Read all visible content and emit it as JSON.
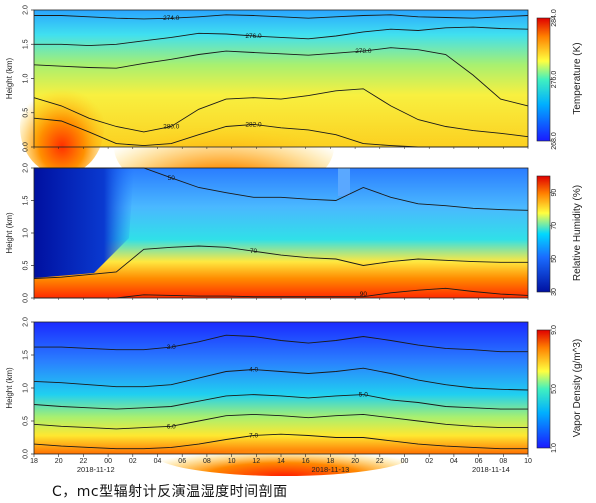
{
  "caption": "C，mc型辐射计反演温湿度时间剖面",
  "chart_data": [
    {
      "type": "heatmap",
      "title": "",
      "ylabel": "Height (km)",
      "xlabel": "",
      "ylim": [
        0,
        2.0
      ],
      "y_ticks": [
        "0.0",
        "0.5",
        "1.0",
        "1.5",
        "2.0"
      ],
      "colorbar": {
        "label": "Temperature (K)",
        "range": [
          268,
          284
        ],
        "ticks": [
          "284.0",
          "276.0",
          "268.0"
        ],
        "colors": [
          "#1a1aff",
          "#00c8ff",
          "#ffff40",
          "#ff8000",
          "#e00000"
        ]
      },
      "contours": [
        {
          "label": "274.0",
          "y": [
            1.92,
            1.92,
            1.9,
            1.88,
            1.87,
            1.88,
            1.9,
            1.93,
            1.92,
            1.9,
            1.88,
            1.9,
            1.92,
            1.93,
            1.9,
            1.89,
            1.88,
            1.9,
            1.92
          ]
        },
        {
          "label": "276.0",
          "y": [
            1.5,
            1.5,
            1.48,
            1.5,
            1.55,
            1.6,
            1.66,
            1.65,
            1.62,
            1.6,
            1.58,
            1.62,
            1.68,
            1.72,
            1.7,
            1.74,
            1.75,
            1.73,
            1.72
          ]
        },
        {
          "label": "278.0",
          "y": [
            1.2,
            1.18,
            1.16,
            1.15,
            1.22,
            1.28,
            1.35,
            1.4,
            1.38,
            1.36,
            1.34,
            1.37,
            1.4,
            1.45,
            1.42,
            1.35,
            1.05,
            0.7,
            0.6
          ]
        },
        {
          "label": "280.0",
          "y": [
            0.72,
            0.6,
            0.42,
            0.3,
            0.22,
            0.3,
            0.55,
            0.7,
            0.72,
            0.7,
            0.75,
            0.82,
            0.85,
            0.6,
            0.4,
            0.3,
            0.24,
            0.2,
            0.15
          ]
        },
        {
          "label": "282.0",
          "y": [
            0.42,
            0.38,
            0.22,
            0.05,
            0.02,
            0.05,
            0.18,
            0.3,
            0.33,
            0.28,
            0.25,
            0.18,
            0.05,
            0.02,
            0.0,
            0.0,
            0.0,
            0.0,
            0.0
          ]
        }
      ]
    },
    {
      "type": "heatmap",
      "title": "",
      "ylabel": "Height (km)",
      "xlabel": "",
      "ylim": [
        0,
        2.0
      ],
      "y_ticks": [
        "0.0",
        "0.5",
        "1.0",
        "1.5",
        "2.0"
      ],
      "colorbar": {
        "label": "Relative Humidity (%)",
        "range": [
          30,
          100
        ],
        "ticks": [
          "90",
          "70",
          "50",
          "30"
        ],
        "colors": [
          "#0010a0",
          "#1a6cff",
          "#00d8ff",
          "#ffff40",
          "#ff8000",
          "#e00000"
        ]
      },
      "contours": [
        {
          "label": "50",
          "y": [
            2.0,
            2.0,
            2.0,
            2.0,
            2.0,
            1.85,
            1.7,
            1.62,
            1.55,
            1.55,
            1.52,
            1.5,
            1.7,
            1.55,
            1.45,
            1.42,
            1.38,
            1.36,
            1.35
          ]
        },
        {
          "label": "70",
          "y": [
            0.3,
            0.32,
            0.36,
            0.4,
            0.75,
            0.78,
            0.8,
            0.78,
            0.72,
            0.66,
            0.62,
            0.6,
            0.5,
            0.56,
            0.6,
            0.58,
            0.56,
            0.55,
            0.55
          ]
        },
        {
          "label": "90",
          "y": [
            0.0,
            0.0,
            0.0,
            0.0,
            0.05,
            0.04,
            0.03,
            0.03,
            0.02,
            0.02,
            0.02,
            0.02,
            0.02,
            0.08,
            0.12,
            0.15,
            0.1,
            0.06,
            0.04
          ]
        }
      ]
    },
    {
      "type": "heatmap",
      "title": "",
      "ylabel": "Height (km)",
      "xlabel": "",
      "ylim": [
        0,
        2.0
      ],
      "y_ticks": [
        "0.0",
        "0.5",
        "1.0",
        "1.5",
        "2.0"
      ],
      "x_ticks": [
        "18",
        "20",
        "22",
        "00",
        "02",
        "04",
        "06",
        "08",
        "10",
        "12",
        "14",
        "16",
        "18",
        "20",
        "22",
        "00",
        "02",
        "04",
        "06",
        "08",
        "10"
      ],
      "date_labels": [
        "2018-11-12",
        "2018-11-13",
        "2018-11-14"
      ],
      "colorbar": {
        "label": "Vapor Density (g/m^3)",
        "range": [
          1.0,
          9.0
        ],
        "ticks": [
          "9.0",
          "5.0",
          "1.0"
        ],
        "colors": [
          "#1a1aff",
          "#00c8ff",
          "#ffff40",
          "#ff8000",
          "#e00000"
        ]
      },
      "contours": [
        {
          "label": "3.0",
          "y": [
            1.62,
            1.62,
            1.6,
            1.58,
            1.58,
            1.62,
            1.7,
            1.8,
            1.78,
            1.72,
            1.68,
            1.72,
            1.78,
            1.72,
            1.65,
            1.6,
            1.58,
            1.55,
            1.55
          ]
        },
        {
          "label": "4.0",
          "y": [
            1.1,
            1.08,
            1.05,
            1.02,
            1.02,
            1.05,
            1.15,
            1.25,
            1.28,
            1.25,
            1.22,
            1.25,
            1.3,
            1.22,
            1.12,
            1.05,
            1.0,
            0.98,
            0.97
          ]
        },
        {
          "label": "5.0",
          "y": [
            0.75,
            0.72,
            0.7,
            0.68,
            0.7,
            0.72,
            0.8,
            0.88,
            0.9,
            0.88,
            0.85,
            0.88,
            0.9,
            0.82,
            0.78,
            0.72,
            0.7,
            0.68,
            0.68
          ]
        },
        {
          "label": "6.0",
          "y": [
            0.45,
            0.42,
            0.4,
            0.38,
            0.4,
            0.42,
            0.5,
            0.58,
            0.6,
            0.58,
            0.55,
            0.58,
            0.6,
            0.55,
            0.5,
            0.45,
            0.42,
            0.4,
            0.4
          ]
        },
        {
          "label": "7.0",
          "y": [
            0.15,
            0.12,
            0.1,
            0.08,
            0.08,
            0.1,
            0.15,
            0.22,
            0.28,
            0.3,
            0.28,
            0.25,
            0.25,
            0.2,
            0.15,
            0.12,
            0.1,
            0.08,
            0.08
          ]
        }
      ]
    }
  ]
}
